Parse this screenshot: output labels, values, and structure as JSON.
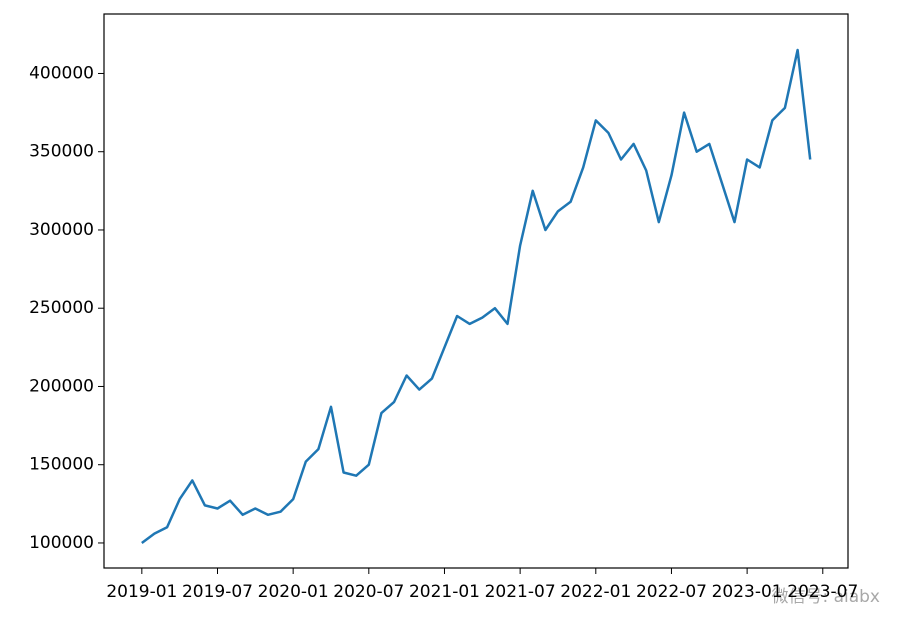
{
  "chart_data": {
    "type": "line",
    "x": [
      "2019-01",
      "2019-02",
      "2019-03",
      "2019-04",
      "2019-05",
      "2019-06",
      "2019-07",
      "2019-08",
      "2019-09",
      "2019-10",
      "2019-11",
      "2019-12",
      "2020-01",
      "2020-02",
      "2020-03",
      "2020-04",
      "2020-05",
      "2020-06",
      "2020-07",
      "2020-08",
      "2020-09",
      "2020-10",
      "2020-11",
      "2020-12",
      "2021-01",
      "2021-02",
      "2021-03",
      "2021-04",
      "2021-05",
      "2021-06",
      "2021-07",
      "2021-08",
      "2021-09",
      "2021-10",
      "2021-11",
      "2021-12",
      "2022-01",
      "2022-02",
      "2022-03",
      "2022-04",
      "2022-05",
      "2022-06",
      "2022-07",
      "2022-08",
      "2022-09",
      "2022-10",
      "2022-11",
      "2022-12",
      "2023-01",
      "2023-02",
      "2023-03",
      "2023-04",
      "2023-05",
      "2023-06"
    ],
    "series": [
      {
        "color": "#1f77b4",
        "values": [
          100000,
          106000,
          110000,
          128000,
          140000,
          124000,
          122000,
          127000,
          118000,
          122000,
          118000,
          120000,
          128000,
          152000,
          160000,
          187000,
          145000,
          143000,
          150000,
          183000,
          190000,
          207000,
          198000,
          205000,
          225000,
          245000,
          240000,
          244000,
          250000,
          240000,
          290000,
          325000,
          300000,
          312000,
          318000,
          340000,
          370000,
          362000,
          345000,
          355000,
          338000,
          305000,
          335000,
          375000,
          350000,
          355000,
          330000,
          305000,
          345000,
          340000,
          370000,
          378000,
          415000,
          345000
        ]
      }
    ],
    "xlim": [
      "2018-10",
      "2023-09"
    ],
    "xticks": [
      "2019-01",
      "2019-07",
      "2020-01",
      "2020-07",
      "2021-01",
      "2021-07",
      "2022-01",
      "2022-07",
      "2023-01",
      "2023-07"
    ],
    "ylim": [
      84000,
      438000
    ],
    "yticks": [
      100000,
      150000,
      200000,
      250000,
      300000,
      350000,
      400000
    ],
    "watermark": "微信号: aiabx"
  }
}
